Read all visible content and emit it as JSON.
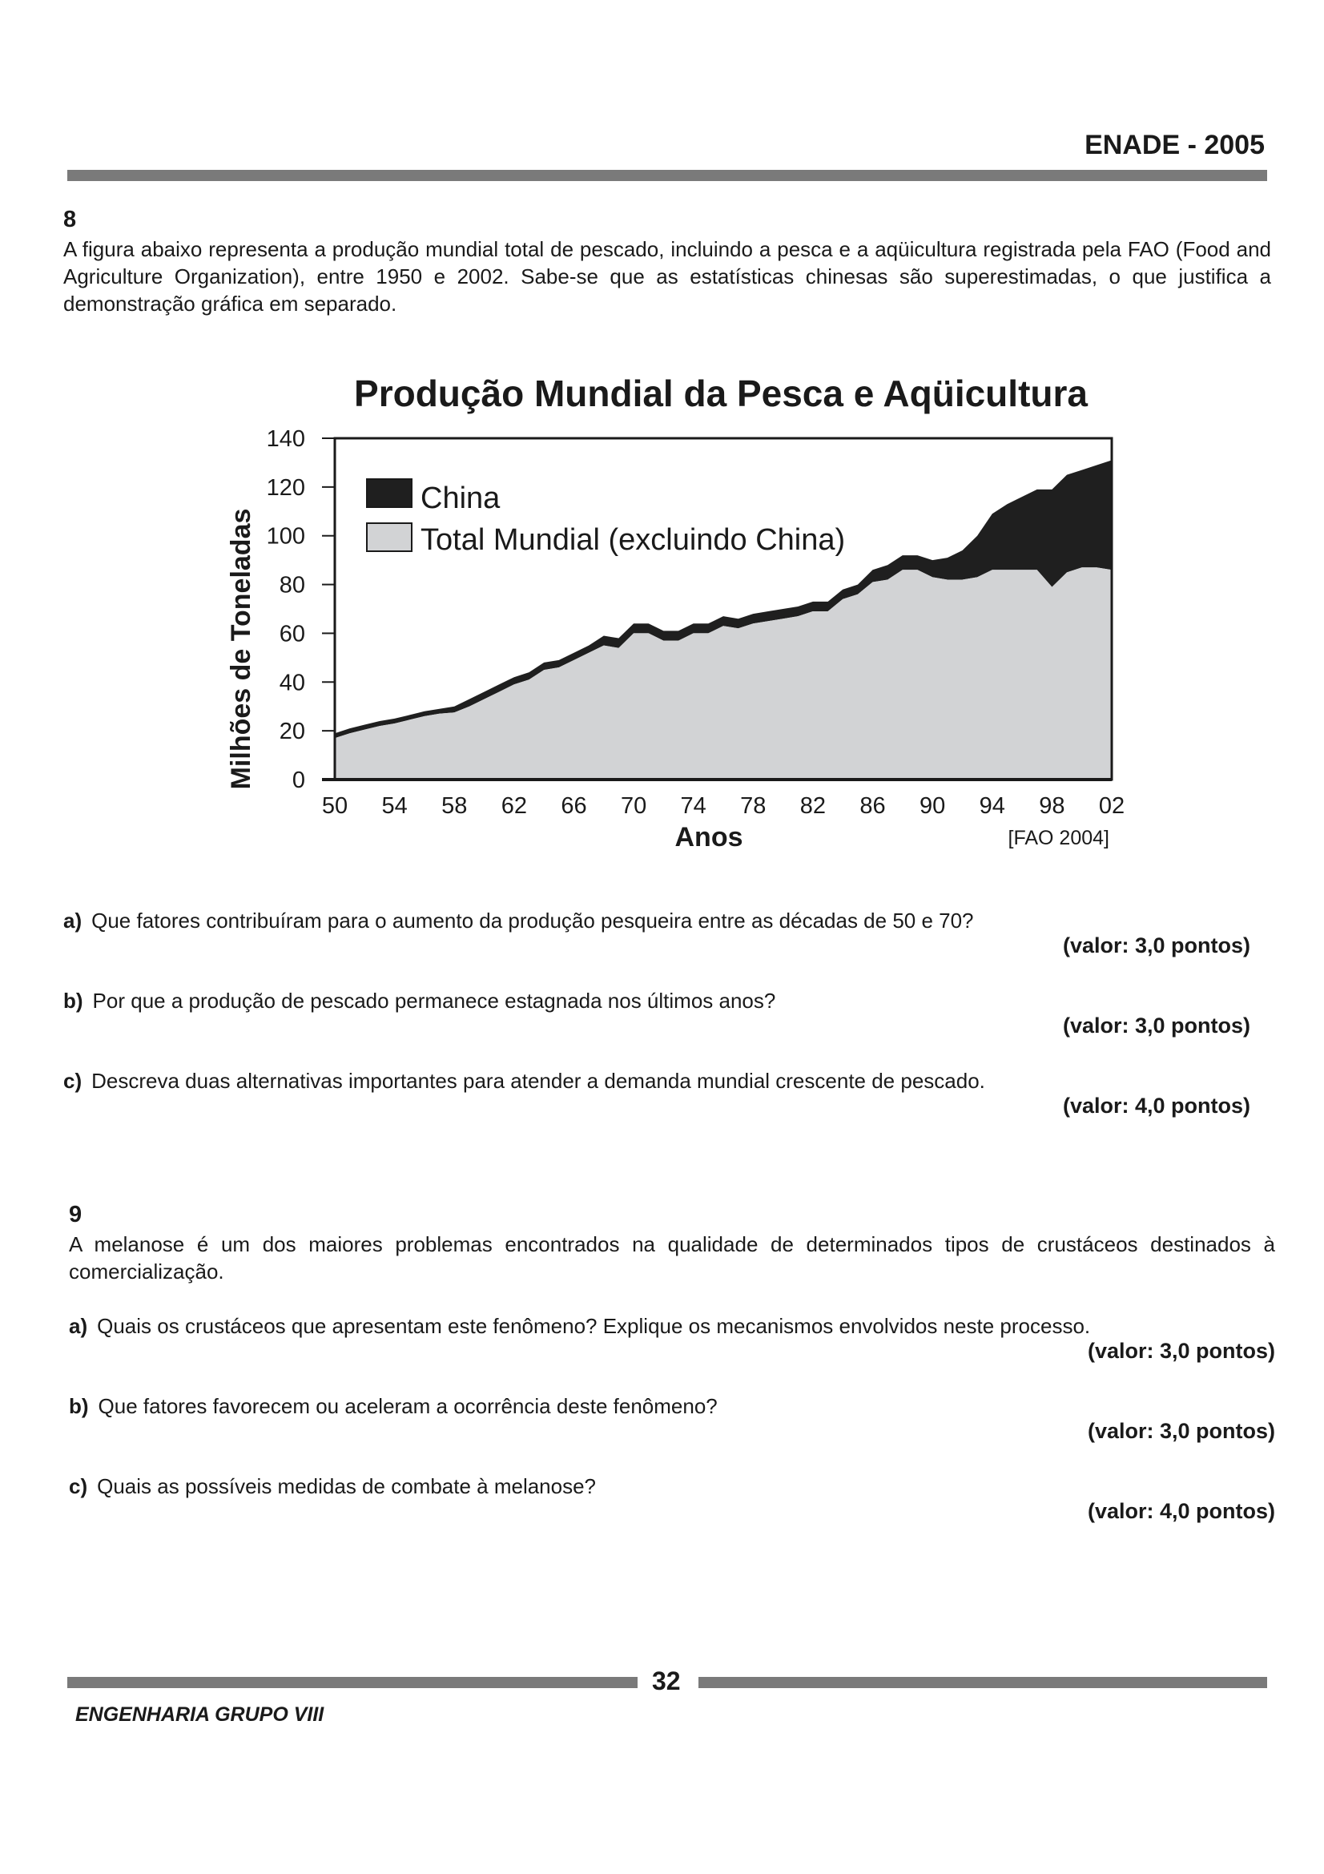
{
  "header": {
    "title": "ENADE - 2005"
  },
  "q8": {
    "number": "8",
    "intro": "A figura abaixo representa a produção mundial total de pescado, incluindo a pesca e a aqüicultura registrada pela FAO (Food and Agriculture Organization), entre 1950 e 2002. Sabe-se que as estatísticas chinesas são superestimadas, o que justifica a demonstração gráfica em separado.",
    "items": [
      {
        "letter": "a)",
        "text": "Que fatores contribuíram para o aumento da produção pesqueira entre as décadas de 50 e 70?",
        "value": "(valor: 3,0 pontos)"
      },
      {
        "letter": "b)",
        "text": "Por que a produção de pescado permanece estagnada nos últimos anos?",
        "value": "(valor: 3,0 pontos)"
      },
      {
        "letter": "c)",
        "text": "Descreva duas alternativas importantes para atender a demanda mundial crescente de pescado.",
        "value": "(valor: 4,0 pontos)"
      }
    ]
  },
  "chart_data": {
    "type": "area",
    "title": "Produção Mundial da Pesca e Aqüicultura",
    "xlabel": "Anos",
    "ylabel": "Milhões de Toneladas",
    "source": "[FAO 2004]",
    "xlim": [
      1950,
      2002
    ],
    "ylim": [
      0,
      140
    ],
    "stacked": true,
    "x_ticks": [
      "50",
      "54",
      "58",
      "62",
      "66",
      "70",
      "74",
      "78",
      "82",
      "86",
      "90",
      "94",
      "98",
      "02"
    ],
    "y_ticks": [
      "0",
      "20",
      "40",
      "60",
      "80",
      "100",
      "120",
      "140"
    ],
    "x": [
      1950,
      1951,
      1952,
      1953,
      1954,
      1955,
      1956,
      1957,
      1958,
      1959,
      1960,
      1961,
      1962,
      1963,
      1964,
      1965,
      1966,
      1967,
      1968,
      1969,
      1970,
      1971,
      1972,
      1973,
      1974,
      1975,
      1976,
      1977,
      1978,
      1979,
      1980,
      1981,
      1982,
      1983,
      1984,
      1985,
      1986,
      1987,
      1988,
      1989,
      1990,
      1991,
      1992,
      1993,
      1994,
      1995,
      1996,
      1997,
      1998,
      1999,
      2000,
      2001,
      2002
    ],
    "legend": {
      "position": "top-left"
    },
    "grid": false,
    "series": [
      {
        "name": "Total Mundial (excluindo China)",
        "color": "#d2d3d5",
        "values": [
          17,
          19,
          20.5,
          22,
          23,
          24.5,
          26,
          27,
          27.5,
          30,
          33,
          36,
          39,
          41,
          45,
          46,
          49,
          52,
          55,
          54,
          60,
          60,
          57,
          57,
          60,
          60,
          63,
          62,
          64,
          65,
          66,
          67,
          69,
          69,
          74,
          76,
          81,
          82,
          86,
          86,
          83,
          82,
          82,
          83,
          86,
          86,
          86,
          86,
          79,
          85,
          87,
          87,
          86
        ]
      },
      {
        "name": "China",
        "color": "#1f1f1f",
        "values": [
          2,
          2,
          2,
          2,
          2,
          2,
          2,
          2,
          2.5,
          3,
          3,
          3,
          3,
          3,
          3,
          3,
          3,
          3,
          4,
          4,
          4,
          4,
          4,
          4,
          4,
          4,
          4,
          4,
          4,
          4,
          4,
          4,
          4,
          4,
          4,
          4,
          5,
          6,
          6,
          6,
          7,
          9,
          12,
          17,
          23,
          27,
          30,
          33,
          40,
          40,
          40,
          42,
          45
        ]
      }
    ]
  },
  "q9": {
    "number": "9",
    "intro": "A melanose é um dos maiores problemas encontrados na qualidade de determinados tipos de crustáceos destinados à comercialização.",
    "items": [
      {
        "letter": "a)",
        "text": "Quais os crustáceos que apresentam este fenômeno? Explique os mecanismos envolvidos neste processo.",
        "value": "(valor: 3,0 pontos)"
      },
      {
        "letter": "b)",
        "text": "Que fatores favorecem ou aceleram a ocorrência deste fenômeno?",
        "value": "(valor: 3,0 pontos)"
      },
      {
        "letter": "c)",
        "text": "Quais as possíveis medidas de combate à melanose?",
        "value": "(valor: 4,0 pontos)"
      }
    ]
  },
  "footer": {
    "page_number": "32",
    "left_text": "ENGENHARIA GRUPO VIII"
  }
}
